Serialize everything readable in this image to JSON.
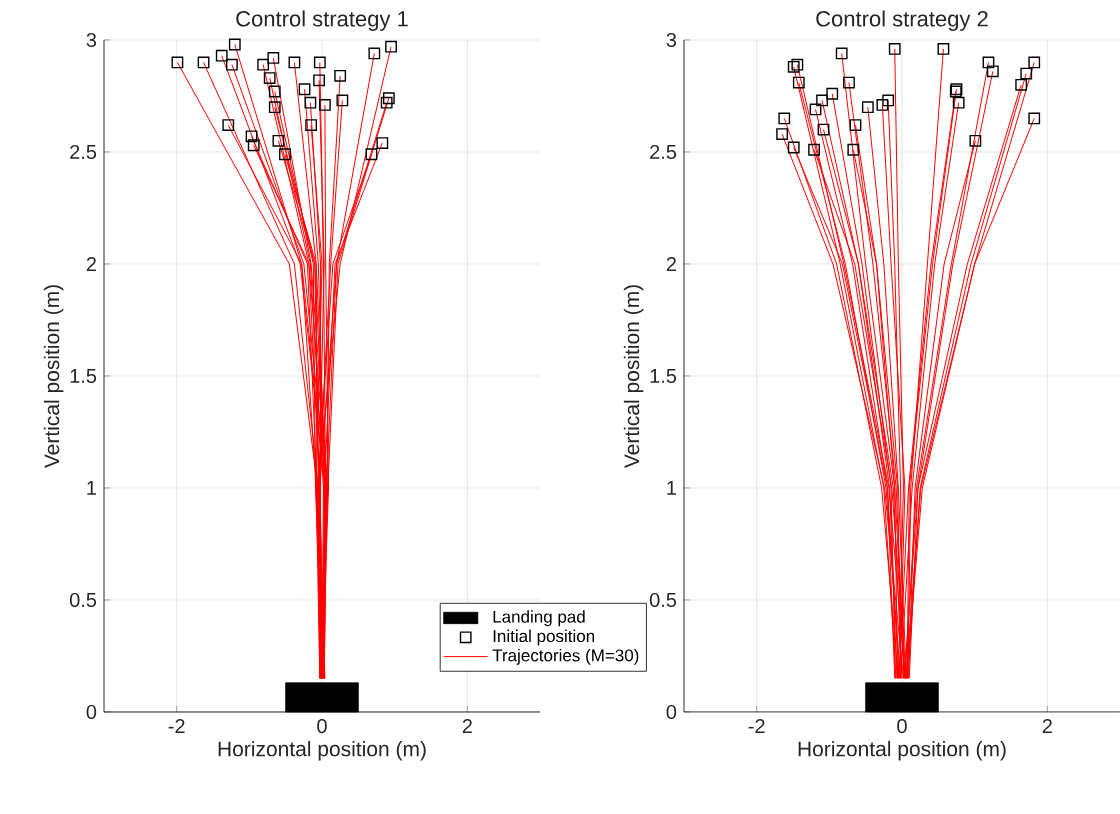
{
  "chart_data": [
    {
      "type": "line",
      "title": "Control strategy 1",
      "xlabel": "Horizontal position (m)",
      "ylabel": "Vertical position (m)",
      "xlim": [
        -3,
        3
      ],
      "ylim": [
        0,
        3
      ],
      "xticks": [
        -2,
        0,
        2
      ],
      "yticks": [
        0,
        0.5,
        1,
        1.5,
        2,
        2.5,
        3
      ],
      "grid": true,
      "legend": "bottom right",
      "series": [
        {
          "type": "area",
          "name": "Landing pad",
          "color": "#000000",
          "x": [
            -0.5,
            0.5
          ],
          "values": [
            0.13,
            0.13
          ]
        },
        {
          "type": "scatter",
          "name": "Initial position",
          "color": "#000000",
          "marker": "square",
          "x": [
            -1.99,
            -1.63,
            -1.38,
            -1.2,
            -1.24,
            -0.81,
            -0.67,
            -0.38,
            -0.03,
            -0.72,
            -0.04,
            0.25,
            -0.65,
            -0.24,
            -0.16,
            0.04,
            0.28,
            -0.65,
            0.72,
            0.95,
            0.92,
            0.89,
            -1.29,
            -0.97,
            -0.94,
            -0.6,
            -0.51,
            -0.15,
            0.83,
            0.68
          ],
          "values": [
            2.9,
            2.9,
            2.93,
            2.98,
            2.89,
            2.89,
            2.92,
            2.9,
            2.9,
            2.83,
            2.82,
            2.84,
            2.77,
            2.78,
            2.72,
            2.71,
            2.73,
            2.7,
            2.94,
            2.97,
            2.74,
            2.72,
            2.62,
            2.57,
            2.53,
            2.55,
            2.49,
            2.62,
            2.54,
            2.49
          ]
        },
        {
          "name": "Trajectories (M=30)",
          "color": "#ff0000",
          "x": [
            -1.99,
            -0.45,
            -0.06,
            -0.02
          ],
          "values": [
            2.9,
            2.0,
            1.0,
            0.15
          ]
        },
        {
          "type": "line",
          "color": "#ff0000",
          "x": [
            -1.63,
            -0.38,
            -0.05,
            0.0
          ],
          "values": [
            2.9,
            2.0,
            1.0,
            0.15
          ]
        },
        {
          "type": "line",
          "color": "#ff0000",
          "x": [
            -1.38,
            -0.3,
            0.04,
            0.02
          ],
          "values": [
            2.93,
            2.0,
            1.0,
            0.15
          ]
        },
        {
          "type": "line",
          "color": "#ff0000",
          "x": [
            -1.2,
            -0.28,
            -0.08,
            -0.03
          ],
          "values": [
            2.98,
            2.0,
            1.0,
            0.15
          ]
        },
        {
          "type": "line",
          "color": "#ff0000",
          "x": [
            -1.24,
            -0.25,
            0.06,
            0.01
          ],
          "values": [
            2.89,
            2.0,
            1.0,
            0.15
          ]
        },
        {
          "type": "line",
          "color": "#ff0000",
          "x": [
            -0.81,
            -0.18,
            -0.03,
            0.03
          ],
          "values": [
            2.89,
            2.0,
            1.0,
            0.15
          ]
        },
        {
          "type": "line",
          "color": "#ff0000",
          "x": [
            -0.67,
            -0.15,
            0.08,
            -0.01
          ],
          "values": [
            2.92,
            2.0,
            1.0,
            0.15
          ]
        },
        {
          "type": "line",
          "color": "#ff0000",
          "x": [
            -0.38,
            -0.08,
            -0.07,
            0.02
          ],
          "values": [
            2.9,
            2.0,
            1.0,
            0.15
          ]
        },
        {
          "type": "line",
          "color": "#ff0000",
          "x": [
            -0.03,
            0.02,
            0.05,
            -0.02
          ],
          "values": [
            2.9,
            2.0,
            1.0,
            0.15
          ]
        },
        {
          "type": "line",
          "color": "#ff0000",
          "x": [
            -0.72,
            -0.16,
            0.02,
            0.0
          ],
          "values": [
            2.83,
            2.0,
            1.0,
            0.15
          ]
        },
        {
          "type": "line",
          "color": "#ff0000",
          "x": [
            -0.04,
            0.03,
            -0.04,
            0.04
          ],
          "values": [
            2.82,
            2.0,
            1.0,
            0.15
          ]
        },
        {
          "type": "line",
          "color": "#ff0000",
          "x": [
            0.25,
            0.1,
            0.07,
            -0.02
          ],
          "values": [
            2.84,
            2.0,
            1.0,
            0.15
          ]
        },
        {
          "type": "line",
          "color": "#ff0000",
          "x": [
            -0.65,
            -0.12,
            -0.09,
            0.01
          ],
          "values": [
            2.77,
            2.0,
            1.0,
            0.15
          ]
        },
        {
          "type": "line",
          "color": "#ff0000",
          "x": [
            -0.24,
            -0.05,
            0.03,
            0.03
          ],
          "values": [
            2.78,
            2.0,
            1.0,
            0.15
          ]
        },
        {
          "type": "line",
          "color": "#ff0000",
          "x": [
            -0.16,
            -0.02,
            -0.02,
            -0.03
          ],
          "values": [
            2.72,
            2.0,
            1.0,
            0.15
          ]
        },
        {
          "type": "line",
          "color": "#ff0000",
          "x": [
            0.04,
            0.05,
            0.09,
            0.0
          ],
          "values": [
            2.71,
            2.0,
            1.0,
            0.15
          ]
        },
        {
          "type": "line",
          "color": "#ff0000",
          "x": [
            0.28,
            0.12,
            -0.05,
            0.02
          ],
          "values": [
            2.73,
            2.0,
            1.0,
            0.15
          ]
        },
        {
          "type": "line",
          "color": "#ff0000",
          "x": [
            -0.65,
            -0.1,
            0.05,
            -0.01
          ],
          "values": [
            2.7,
            2.0,
            1.0,
            0.15
          ]
        },
        {
          "type": "line",
          "color": "#ff0000",
          "x": [
            0.72,
            0.2,
            0.06,
            0.03
          ],
          "values": [
            2.94,
            2.0,
            1.0,
            0.15
          ]
        },
        {
          "type": "line",
          "color": "#ff0000",
          "x": [
            0.95,
            0.25,
            -0.06,
            0.0
          ],
          "values": [
            2.97,
            2.0,
            1.0,
            0.15
          ]
        },
        {
          "type": "line",
          "color": "#ff0000",
          "x": [
            0.92,
            0.22,
            0.08,
            -0.02
          ],
          "values": [
            2.74,
            2.0,
            1.0,
            0.15
          ]
        },
        {
          "type": "line",
          "color": "#ff0000",
          "x": [
            0.89,
            0.2,
            -0.03,
            0.01
          ],
          "values": [
            2.72,
            2.0,
            1.0,
            0.15
          ]
        },
        {
          "type": "line",
          "color": "#ff0000",
          "x": [
            -1.29,
            -0.28,
            0.04,
            0.02
          ],
          "values": [
            2.62,
            2.0,
            1.0,
            0.15
          ]
        },
        {
          "type": "line",
          "color": "#ff0000",
          "x": [
            -0.97,
            -0.2,
            -0.07,
            -0.01
          ],
          "values": [
            2.57,
            2.0,
            1.0,
            0.15
          ]
        },
        {
          "type": "line",
          "color": "#ff0000",
          "x": [
            -0.94,
            -0.18,
            0.07,
            0.03
          ],
          "values": [
            2.53,
            2.0,
            1.0,
            0.15
          ]
        },
        {
          "type": "line",
          "color": "#ff0000",
          "x": [
            -0.6,
            -0.1,
            -0.04,
            0.0
          ],
          "values": [
            2.55,
            2.0,
            1.0,
            0.15
          ]
        },
        {
          "type": "line",
          "color": "#ff0000",
          "x": [
            -0.51,
            -0.08,
            0.06,
            -0.02
          ],
          "values": [
            2.49,
            2.0,
            1.0,
            0.15
          ]
        },
        {
          "type": "line",
          "color": "#ff0000",
          "x": [
            -0.15,
            0.0,
            -0.08,
            0.01
          ],
          "values": [
            2.62,
            2.0,
            1.0,
            0.15
          ]
        },
        {
          "type": "line",
          "color": "#ff0000",
          "x": [
            0.83,
            0.18,
            0.03,
            0.02
          ],
          "values": [
            2.54,
            2.0,
            1.0,
            0.15
          ]
        },
        {
          "type": "line",
          "color": "#ff0000",
          "x": [
            0.68,
            0.15,
            -0.06,
            -0.03
          ],
          "values": [
            2.49,
            2.0,
            1.0,
            0.15
          ]
        }
      ]
    },
    {
      "type": "line",
      "title": "Control strategy 2",
      "xlabel": "Horizontal position (m)",
      "ylabel": "Vertical position (m)",
      "xlim": [
        -3,
        3
      ],
      "ylim": [
        0,
        3
      ],
      "xticks": [
        -2,
        0,
        2
      ],
      "yticks": [
        0,
        0.5,
        1,
        1.5,
        2,
        2.5,
        3
      ],
      "grid": true,
      "series": [
        {
          "type": "area",
          "color": "#000000",
          "x": [
            -0.5,
            0.5
          ],
          "values": [
            0.13,
            0.13
          ]
        },
        {
          "type": "scatter",
          "color": "#000000",
          "marker": "square",
          "x": [
            -0.1,
            0.57,
            -0.83,
            -1.49,
            -1.44,
            -1.42,
            -0.73,
            -0.96,
            -1.1,
            -1.19,
            -0.47,
            -0.27,
            -0.19,
            -1.08,
            -0.64,
            -1.62,
            -1.65,
            -1.49,
            -1.21,
            -0.67,
            0.75,
            0.78,
            1.01,
            1.19,
            1.25,
            1.82,
            1.71,
            1.64,
            1.82,
            0.74
          ],
          "values": [
            2.96,
            2.96,
            2.94,
            2.88,
            2.89,
            2.81,
            2.81,
            2.76,
            2.73,
            2.69,
            2.7,
            2.71,
            2.73,
            2.6,
            2.62,
            2.65,
            2.58,
            2.52,
            2.51,
            2.51,
            2.78,
            2.72,
            2.55,
            2.9,
            2.86,
            2.9,
            2.85,
            2.8,
            2.65,
            2.77
          ]
        },
        {
          "type": "line",
          "color": "#ff0000",
          "x": [
            -0.1,
            -0.05,
            0.02,
            -0.05
          ],
          "values": [
            2.96,
            2.0,
            1.0,
            0.15
          ]
        },
        {
          "type": "line",
          "color": "#ff0000",
          "x": [
            0.57,
            0.35,
            0.12,
            0.08
          ],
          "values": [
            2.96,
            2.0,
            1.0,
            0.15
          ]
        },
        {
          "type": "line",
          "color": "#ff0000",
          "x": [
            -0.83,
            -0.5,
            -0.1,
            -0.06
          ],
          "values": [
            2.94,
            2.0,
            1.0,
            0.15
          ]
        },
        {
          "type": "line",
          "color": "#ff0000",
          "x": [
            -1.49,
            -0.85,
            -0.25,
            -0.08
          ],
          "values": [
            2.88,
            2.0,
            1.0,
            0.15
          ]
        },
        {
          "type": "line",
          "color": "#ff0000",
          "x": [
            -1.44,
            -0.8,
            -0.18,
            0.05
          ],
          "values": [
            2.89,
            2.0,
            1.0,
            0.15
          ]
        },
        {
          "type": "line",
          "color": "#ff0000",
          "x": [
            -1.42,
            -0.78,
            -0.22,
            -0.02
          ],
          "values": [
            2.81,
            2.0,
            1.0,
            0.15
          ]
        },
        {
          "type": "line",
          "color": "#ff0000",
          "x": [
            -0.73,
            -0.4,
            -0.08,
            0.03
          ],
          "values": [
            2.81,
            2.0,
            1.0,
            0.15
          ]
        },
        {
          "type": "line",
          "color": "#ff0000",
          "x": [
            -0.96,
            -0.55,
            -0.15,
            -0.09
          ],
          "values": [
            2.76,
            2.0,
            1.0,
            0.15
          ]
        },
        {
          "type": "line",
          "color": "#ff0000",
          "x": [
            -1.1,
            -0.6,
            -0.12,
            0.0
          ],
          "values": [
            2.73,
            2.0,
            1.0,
            0.15
          ]
        },
        {
          "type": "line",
          "color": "#ff0000",
          "x": [
            -1.19,
            -0.68,
            -0.2,
            -0.04
          ],
          "values": [
            2.69,
            2.0,
            1.0,
            0.15
          ]
        },
        {
          "type": "line",
          "color": "#ff0000",
          "x": [
            -0.47,
            -0.25,
            -0.05,
            0.06
          ],
          "values": [
            2.7,
            2.0,
            1.0,
            0.15
          ]
        },
        {
          "type": "line",
          "color": "#ff0000",
          "x": [
            -0.27,
            -0.15,
            0.04,
            -0.03
          ],
          "values": [
            2.71,
            2.0,
            1.0,
            0.15
          ]
        },
        {
          "type": "line",
          "color": "#ff0000",
          "x": [
            -0.19,
            -0.1,
            -0.02,
            0.02
          ],
          "values": [
            2.73,
            2.0,
            1.0,
            0.15
          ]
        },
        {
          "type": "line",
          "color": "#ff0000",
          "x": [
            -1.08,
            -0.6,
            -0.17,
            -0.07
          ],
          "values": [
            2.6,
            2.0,
            1.0,
            0.15
          ]
        },
        {
          "type": "line",
          "color": "#ff0000",
          "x": [
            -0.64,
            -0.35,
            -0.1,
            0.04
          ],
          "values": [
            2.62,
            2.0,
            1.0,
            0.15
          ]
        },
        {
          "type": "line",
          "color": "#ff0000",
          "x": [
            -1.62,
            -0.9,
            -0.28,
            -0.05
          ],
          "values": [
            2.65,
            2.0,
            1.0,
            0.15
          ]
        },
        {
          "type": "line",
          "color": "#ff0000",
          "x": [
            -1.65,
            -0.95,
            -0.24,
            0.02
          ],
          "values": [
            2.58,
            2.0,
            1.0,
            0.15
          ]
        },
        {
          "type": "line",
          "color": "#ff0000",
          "x": [
            -1.49,
            -0.82,
            -0.2,
            -0.1
          ],
          "values": [
            2.52,
            2.0,
            1.0,
            0.15
          ]
        },
        {
          "type": "line",
          "color": "#ff0000",
          "x": [
            -1.21,
            -0.65,
            -0.14,
            0.06
          ],
          "values": [
            2.51,
            2.0,
            1.0,
            0.15
          ]
        },
        {
          "type": "line",
          "color": "#ff0000",
          "x": [
            -0.67,
            -0.35,
            -0.06,
            -0.01
          ],
          "values": [
            2.51,
            2.0,
            1.0,
            0.15
          ]
        },
        {
          "type": "line",
          "color": "#ff0000",
          "x": [
            0.75,
            0.42,
            0.1,
            0.07
          ],
          "values": [
            2.78,
            2.0,
            1.0,
            0.15
          ]
        },
        {
          "type": "line",
          "color": "#ff0000",
          "x": [
            0.78,
            0.45,
            0.14,
            -0.02
          ],
          "values": [
            2.72,
            2.0,
            1.0,
            0.15
          ]
        },
        {
          "type": "line",
          "color": "#ff0000",
          "x": [
            1.01,
            0.58,
            0.18,
            0.09
          ],
          "values": [
            2.55,
            2.0,
            1.0,
            0.15
          ]
        },
        {
          "type": "line",
          "color": "#ff0000",
          "x": [
            1.19,
            0.68,
            0.2,
            0.04
          ],
          "values": [
            2.9,
            2.0,
            1.0,
            0.15
          ]
        },
        {
          "type": "line",
          "color": "#ff0000",
          "x": [
            1.25,
            0.7,
            0.22,
            0.1
          ],
          "values": [
            2.86,
            2.0,
            1.0,
            0.15
          ]
        },
        {
          "type": "line",
          "color": "#ff0000",
          "x": [
            1.82,
            1.0,
            0.28,
            0.06
          ],
          "values": [
            2.9,
            2.0,
            1.0,
            0.15
          ]
        },
        {
          "type": "line",
          "color": "#ff0000",
          "x": [
            1.71,
            0.95,
            0.25,
            0.08
          ],
          "values": [
            2.85,
            2.0,
            1.0,
            0.15
          ]
        },
        {
          "type": "line",
          "color": "#ff0000",
          "x": [
            1.64,
            0.9,
            0.22,
            0.03
          ],
          "values": [
            2.8,
            2.0,
            1.0,
            0.15
          ]
        },
        {
          "type": "line",
          "color": "#ff0000",
          "x": [
            1.82,
            1.0,
            0.26,
            0.05
          ],
          "values": [
            2.65,
            2.0,
            1.0,
            0.15
          ]
        },
        {
          "type": "line",
          "color": "#ff0000",
          "x": [
            0.74,
            0.4,
            0.09,
            -0.04
          ],
          "values": [
            2.77,
            2.0,
            1.0,
            0.15
          ]
        }
      ]
    }
  ]
}
